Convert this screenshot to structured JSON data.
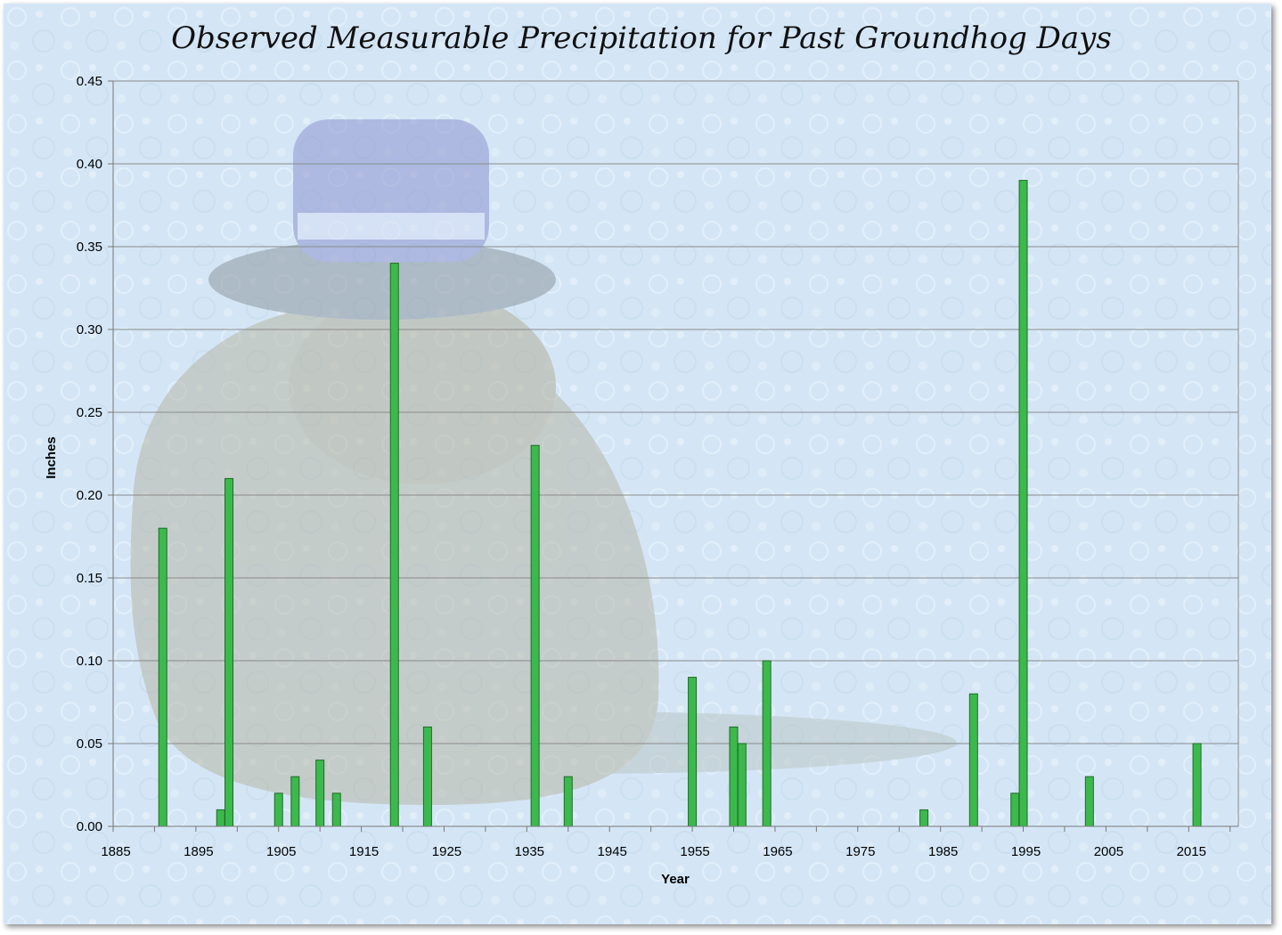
{
  "chart_data": {
    "type": "bar",
    "title": "Observed Measurable Precipitation for Past Groundhog Days",
    "xlabel": "Year",
    "ylabel": "Inches",
    "xlim": [
      1885,
      2021
    ],
    "ylim": [
      0,
      0.45
    ],
    "x_ticks": [
      1885,
      1895,
      1905,
      1915,
      1925,
      1935,
      1945,
      1955,
      1965,
      1975,
      1985,
      1995,
      2005,
      2015
    ],
    "x_tick_labels": [
      "1885",
      "1895",
      "1905",
      "1915",
      "1925",
      "1935",
      "1945",
      "1955",
      "1965",
      "1975",
      "1985",
      "1995",
      "2005",
      "2015"
    ],
    "y_ticks": [
      0,
      0.05,
      0.1,
      0.15,
      0.2,
      0.25,
      0.3,
      0.35,
      0.4,
      0.45
    ],
    "y_tick_labels": [
      "0.00",
      "0.05",
      "0.10",
      "0.15",
      "0.20",
      "0.25",
      "0.30",
      "0.35",
      "0.40",
      "0.45"
    ],
    "grid": true,
    "bar_color": "#3cb94c",
    "bar_edge_color": "#1f6b27",
    "points": [
      {
        "x": 1891,
        "y": 0.18
      },
      {
        "x": 1898,
        "y": 0.01
      },
      {
        "x": 1899,
        "y": 0.21
      },
      {
        "x": 1905,
        "y": 0.02
      },
      {
        "x": 1907,
        "y": 0.03
      },
      {
        "x": 1910,
        "y": 0.04
      },
      {
        "x": 1912,
        "y": 0.02
      },
      {
        "x": 1919,
        "y": 0.34
      },
      {
        "x": 1923,
        "y": 0.06
      },
      {
        "x": 1936,
        "y": 0.23
      },
      {
        "x": 1940,
        "y": 0.03
      },
      {
        "x": 1955,
        "y": 0.09
      },
      {
        "x": 1960,
        "y": 0.06
      },
      {
        "x": 1961,
        "y": 0.05
      },
      {
        "x": 1964,
        "y": 0.1
      },
      {
        "x": 1983,
        "y": 0.01
      },
      {
        "x": 1989,
        "y": 0.08
      },
      {
        "x": 1994,
        "y": 0.02
      },
      {
        "x": 1995,
        "y": 0.39
      },
      {
        "x": 2003,
        "y": 0.03
      },
      {
        "x": 2016,
        "y": 0.05
      }
    ]
  }
}
